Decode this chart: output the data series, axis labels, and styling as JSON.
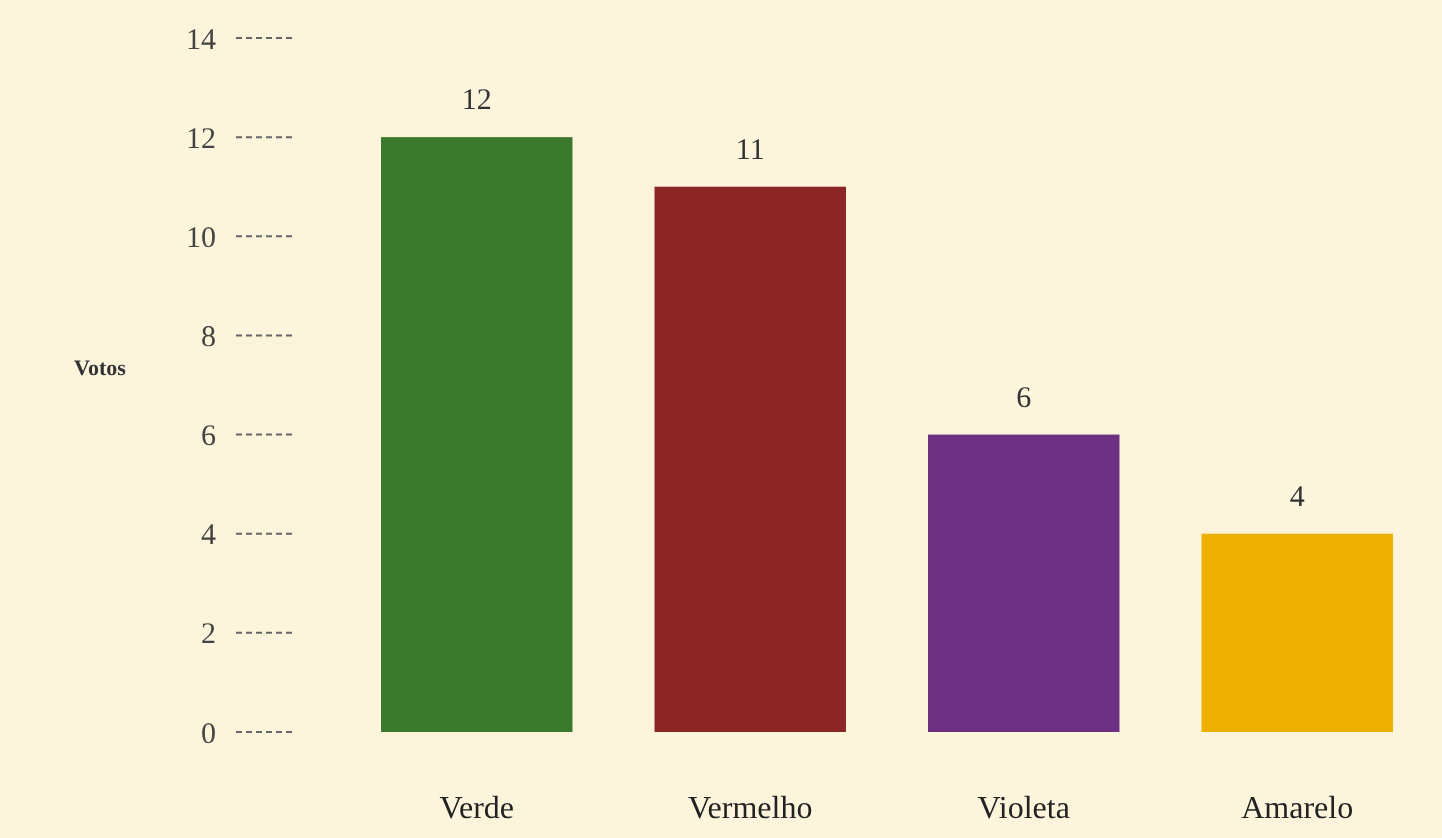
{
  "chart_data": {
    "type": "bar",
    "ylabel": "Votos",
    "categories": [
      "Verde",
      "Vermelho",
      "Violeta",
      "Amarelo"
    ],
    "values": [
      12,
      11,
      6,
      4
    ],
    "colors": [
      "#3b7a2c",
      "#8c2525",
      "#6d2f82",
      "#eeb000"
    ],
    "ylim": [
      0,
      14
    ],
    "yticks": [
      0,
      2,
      4,
      6,
      8,
      10,
      12,
      14
    ],
    "data_labels": true,
    "grid": false
  }
}
